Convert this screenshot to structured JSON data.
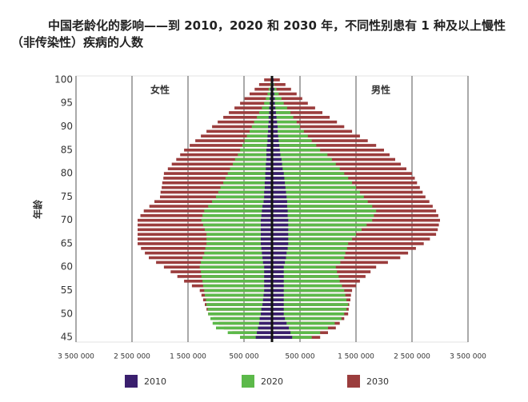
{
  "chart_data": {
    "type": "pyramid",
    "title": "中国老龄化的影响——到 2010，2020 和 2030 年，不同性别患有 1 种及以上慢性（非传染性）疾病的人数",
    "y_label": "年龄",
    "left_label": "女性",
    "right_label": "男性",
    "y": [
      45,
      46,
      47,
      48,
      49,
      50,
      51,
      52,
      53,
      54,
      55,
      56,
      57,
      58,
      59,
      60,
      61,
      62,
      63,
      64,
      65,
      66,
      67,
      68,
      69,
      70,
      71,
      72,
      73,
      74,
      75,
      76,
      77,
      78,
      79,
      80,
      81,
      82,
      83,
      84,
      85,
      86,
      87,
      88,
      89,
      90,
      91,
      92,
      93,
      94,
      95,
      96,
      97,
      98,
      99,
      100
    ],
    "ylim": [
      44.5,
      100.5
    ],
    "yticks": [
      45,
      50,
      55,
      60,
      65,
      70,
      75,
      80,
      85,
      90,
      95,
      100
    ],
    "xlim": [
      -3500000,
      3500000
    ],
    "xticks": [
      {
        "value": -3500000,
        "label": "3 500 000"
      },
      {
        "value": -2500000,
        "label": "2 500 000"
      },
      {
        "value": -1500000,
        "label": "1 500 000"
      },
      {
        "value": -500000,
        "label": "500 000"
      },
      {
        "value": 500000,
        "label": "500 000"
      },
      {
        "value": 1500000,
        "label": "1 500 000"
      },
      {
        "value": 2500000,
        "label": "2 500 000"
      },
      {
        "value": 3500000,
        "label": "3 500 000"
      }
    ],
    "series": [
      {
        "name": "2030",
        "color": "#9b3d3d",
        "female": [
          570000,
          710000,
          860000,
          950000,
          1050000,
          1140000,
          1170000,
          1200000,
          1230000,
          1260000,
          1290000,
          1430000,
          1570000,
          1690000,
          1810000,
          1930000,
          2070000,
          2200000,
          2270000,
          2340000,
          2400000,
          2400000,
          2400000,
          2400000,
          2400000,
          2400000,
          2350000,
          2290000,
          2190000,
          2100000,
          2000000,
          1990000,
          1970000,
          1960000,
          1940000,
          1930000,
          1860000,
          1790000,
          1710000,
          1640000,
          1570000,
          1470000,
          1370000,
          1270000,
          1170000,
          1070000,
          970000,
          870000,
          770000,
          670000,
          570000,
          490000,
          400000,
          310000,
          230000,
          140000
        ],
        "male": [
          860000,
          1000000,
          1140000,
          1210000,
          1290000,
          1360000,
          1370000,
          1380000,
          1400000,
          1410000,
          1430000,
          1500000,
          1570000,
          1670000,
          1760000,
          1860000,
          2070000,
          2290000,
          2430000,
          2570000,
          2710000,
          2820000,
          2930000,
          2960000,
          2980000,
          3000000,
          2970000,
          2930000,
          2870000,
          2810000,
          2740000,
          2690000,
          2640000,
          2590000,
          2550000,
          2500000,
          2400000,
          2300000,
          2200000,
          2100000,
          2000000,
          1860000,
          1710000,
          1570000,
          1430000,
          1290000,
          1160000,
          1030000,
          900000,
          770000,
          640000,
          540000,
          440000,
          340000,
          240000,
          140000
        ]
      },
      {
        "name": "2020",
        "color": "#5cb94a",
        "female": [
          570000,
          790000,
          1000000,
          1060000,
          1100000,
          1140000,
          1150000,
          1170000,
          1180000,
          1200000,
          1210000,
          1230000,
          1240000,
          1260000,
          1270000,
          1290000,
          1270000,
          1240000,
          1210000,
          1190000,
          1170000,
          1170000,
          1170000,
          1200000,
          1230000,
          1260000,
          1240000,
          1210000,
          1140000,
          1070000,
          1000000,
          960000,
          920000,
          870000,
          830000,
          790000,
          750000,
          700000,
          660000,
          610000,
          570000,
          530000,
          490000,
          450000,
          400000,
          360000,
          320000,
          270000,
          230000,
          180000,
          140000,
          110000,
          80000,
          60000,
          30000,
          10000
        ],
        "male": [
          710000,
          860000,
          1000000,
          1120000,
          1240000,
          1290000,
          1330000,
          1360000,
          1330000,
          1310000,
          1290000,
          1250000,
          1210000,
          1190000,
          1160000,
          1140000,
          1220000,
          1290000,
          1310000,
          1340000,
          1360000,
          1430000,
          1500000,
          1600000,
          1690000,
          1790000,
          1820000,
          1860000,
          1790000,
          1710000,
          1640000,
          1570000,
          1500000,
          1430000,
          1360000,
          1290000,
          1210000,
          1140000,
          1070000,
          990000,
          860000,
          790000,
          710000,
          640000,
          570000,
          500000,
          440000,
          380000,
          330000,
          270000,
          210000,
          170000,
          120000,
          80000,
          40000,
          20000
        ]
      },
      {
        "name": "2010",
        "color": "#3a1f6e",
        "female": [
          290000,
          270000,
          250000,
          230000,
          220000,
          200000,
          190000,
          170000,
          160000,
          150000,
          140000,
          140000,
          140000,
          140000,
          140000,
          140000,
          160000,
          170000,
          180000,
          190000,
          200000,
          200000,
          200000,
          200000,
          200000,
          200000,
          190000,
          180000,
          170000,
          150000,
          140000,
          140000,
          130000,
          130000,
          120000,
          120000,
          110000,
          110000,
          100000,
          100000,
          100000,
          90000,
          80000,
          80000,
          70000,
          70000,
          60000,
          60000,
          50000,
          50000,
          40000,
          40000,
          30000,
          30000,
          20000,
          20000
        ],
        "male": [
          360000,
          330000,
          300000,
          260000,
          230000,
          210000,
          210000,
          210000,
          210000,
          210000,
          210000,
          210000,
          210000,
          210000,
          210000,
          210000,
          230000,
          250000,
          260000,
          280000,
          290000,
          290000,
          290000,
          290000,
          290000,
          290000,
          280000,
          280000,
          270000,
          270000,
          260000,
          250000,
          240000,
          230000,
          220000,
          210000,
          190000,
          180000,
          170000,
          150000,
          140000,
          130000,
          120000,
          110000,
          100000,
          100000,
          90000,
          80000,
          70000,
          60000,
          50000,
          50000,
          40000,
          40000,
          30000,
          30000
        ]
      }
    ]
  }
}
